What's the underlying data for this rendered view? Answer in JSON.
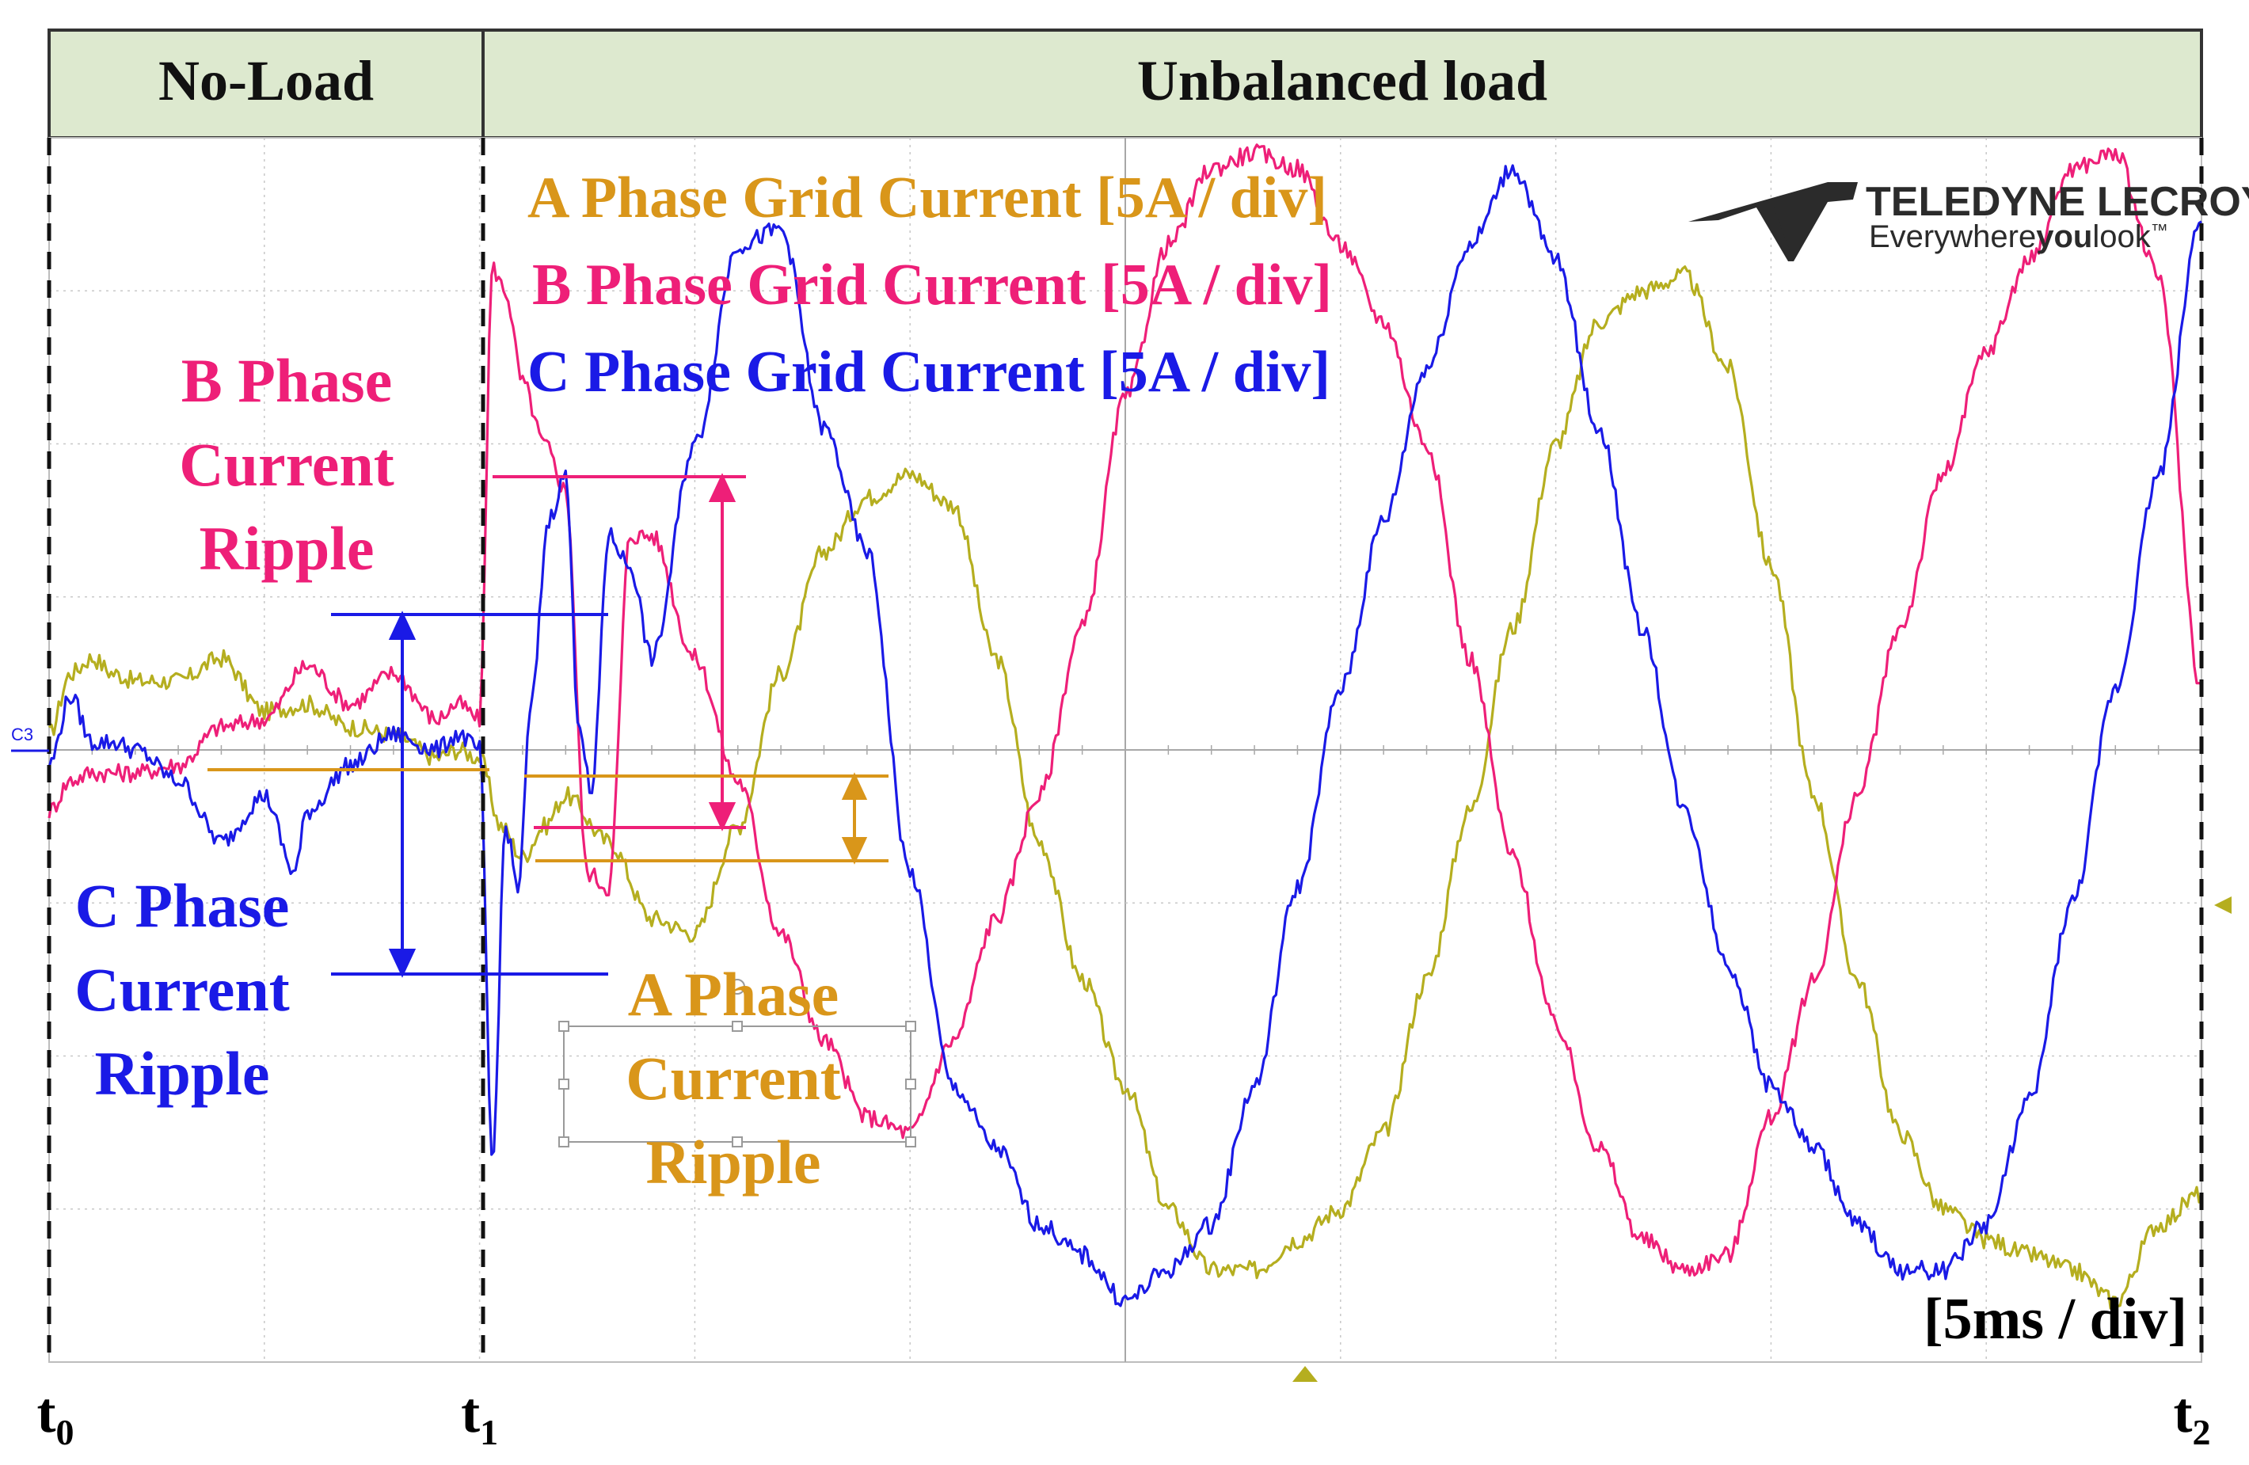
{
  "header": {
    "phase1": "No-Load",
    "phase2": "Unbalanced load",
    "bg_color": "#dde9cf"
  },
  "legend": [
    {
      "text": "A Phase Grid Current [5A / div]",
      "color": "#d9961a"
    },
    {
      "text": "B Phase Grid Current [5A / div]",
      "color": "#ee1f78"
    },
    {
      "text": "C Phase Grid Current [5A / div]",
      "color": "#1a1ae6"
    }
  ],
  "logo": {
    "brand": "TELEDYNE LECROY",
    "tagline_pre": "Everywhere",
    "tagline_bold": "you",
    "tagline_post": "look",
    "trademark": "™"
  },
  "scale": "[5ms / div]",
  "channel_marker": "C3",
  "annotations": {
    "b_ripple": [
      "B Phase",
      "Current",
      "Ripple"
    ],
    "c_ripple": [
      "C Phase",
      "Current",
      "Ripple"
    ],
    "a_ripple": [
      "A Phase",
      "Current",
      "Ripple"
    ]
  },
  "chart_data": {
    "type": "line",
    "title": "",
    "xlabel": "",
    "ylabel": "",
    "x_ticks": [
      {
        "base": "t",
        "sub": "0"
      },
      {
        "base": "t",
        "sub": "1"
      },
      {
        "base": "t",
        "sub": "2"
      }
    ],
    "x_unit": "ms",
    "xlim": [
      0,
      50
    ],
    "ylim": [
      -4,
      4
    ],
    "y_unit": "div (5 A/div)",
    "grid": true,
    "events": [
      {
        "x": 0,
        "label": "t0"
      },
      {
        "x": 10,
        "label": "t1"
      },
      {
        "x": 50,
        "label": "t2"
      }
    ],
    "series": [
      {
        "name": "A Phase Grid Current [5A / div]",
        "color": "#b5ae1f",
        "x": [
          0,
          0.5,
          1,
          1.5,
          2,
          3,
          4,
          5,
          6,
          7,
          8,
          9,
          9.5,
          10,
          10.5,
          11,
          11.5,
          12,
          13,
          14,
          15,
          16,
          17,
          18,
          19,
          20,
          21,
          22,
          23,
          24,
          25,
          26,
          27,
          28,
          29,
          30,
          31,
          32,
          33,
          34,
          35,
          36,
          37,
          38,
          39,
          40,
          41,
          42,
          43,
          44,
          45,
          46,
          47,
          48,
          49,
          50
        ],
        "values": [
          0.1,
          0.5,
          0.6,
          0.5,
          0.45,
          0.45,
          0.6,
          0.25,
          0.3,
          0.15,
          0.1,
          -0.05,
          0.0,
          -0.05,
          -0.5,
          -0.7,
          -0.5,
          -0.3,
          -0.6,
          -1.1,
          -1.2,
          -0.5,
          0.5,
          1.3,
          1.65,
          1.8,
          1.6,
          0.6,
          -0.6,
          -1.5,
          -2.2,
          -3.0,
          -3.4,
          -3.4,
          -3.2,
          -3.0,
          -2.5,
          -1.5,
          -0.4,
          0.8,
          2.0,
          2.8,
          3.0,
          3.1,
          2.5,
          1.2,
          -0.3,
          -1.5,
          -2.5,
          -3.0,
          -3.2,
          -3.3,
          -3.4,
          -3.6,
          -3.1,
          -2.9
        ]
      },
      {
        "name": "B Phase Grid Current [5A / div]",
        "color": "#ee1f78",
        "x": [
          0,
          0.5,
          1,
          2,
          3,
          4,
          5,
          6,
          7,
          8,
          9,
          9.5,
          10,
          10.3,
          10.6,
          11,
          11.5,
          12,
          12.5,
          13,
          13.5,
          14,
          15,
          16,
          17,
          18,
          19,
          20,
          21,
          22,
          23,
          24,
          25,
          26,
          27,
          28,
          29,
          30,
          31,
          32,
          33,
          34,
          35,
          36,
          37,
          38,
          39,
          40,
          41,
          42,
          43,
          44,
          45,
          46,
          47,
          48,
          49,
          50
        ],
        "values": [
          -0.4,
          -0.2,
          -0.15,
          -0.15,
          -0.1,
          0.15,
          0.2,
          0.55,
          0.3,
          0.5,
          0.2,
          0.3,
          0.2,
          3.15,
          3.0,
          2.4,
          2.0,
          1.7,
          -0.8,
          -0.9,
          1.4,
          1.4,
          0.6,
          -0.2,
          -1.2,
          -1.9,
          -2.4,
          -2.5,
          -1.9,
          -1.1,
          -0.3,
          0.8,
          2.3,
          3.3,
          3.8,
          3.9,
          3.8,
          3.3,
          2.8,
          2.0,
          0.6,
          -0.7,
          -1.8,
          -2.6,
          -3.2,
          -3.4,
          -3.3,
          -2.4,
          -1.5,
          -0.3,
          0.8,
          1.8,
          2.6,
          3.2,
          3.8,
          3.9,
          3.1,
          0.4
        ]
      },
      {
        "name": "C Phase Grid Current [5A / div]",
        "color": "#1a1ae6",
        "x": [
          0,
          0.5,
          1,
          1.5,
          2,
          3,
          4,
          5,
          5.7,
          6,
          7,
          8,
          9,
          9.5,
          10,
          10.3,
          10.6,
          10.9,
          11.2,
          11.6,
          12,
          12.3,
          12.6,
          13,
          13.5,
          14,
          15,
          16,
          17,
          18,
          19,
          20,
          21,
          22,
          23,
          24,
          25,
          26,
          27,
          28,
          29,
          30,
          31,
          32,
          33,
          34,
          35,
          36,
          37,
          38,
          39,
          40,
          41,
          42,
          43,
          44,
          45,
          46,
          47,
          48,
          49,
          50
        ],
        "values": [
          -0.1,
          0.35,
          0.05,
          0.05,
          0.0,
          -0.2,
          -0.6,
          -0.3,
          -0.8,
          -0.4,
          -0.1,
          0.1,
          0.0,
          0.1,
          0.0,
          -2.7,
          -0.5,
          -0.9,
          0.3,
          1.5,
          1.8,
          0.2,
          -0.3,
          1.4,
          1.2,
          0.6,
          2.0,
          3.3,
          3.4,
          2.1,
          1.3,
          -0.8,
          -2.2,
          -2.6,
          -3.1,
          -3.3,
          -3.6,
          -3.4,
          -3.1,
          -2.2,
          -0.9,
          0.4,
          1.5,
          2.5,
          3.3,
          3.8,
          3.2,
          2.1,
          0.8,
          -0.4,
          -1.4,
          -2.2,
          -2.6,
          -3.1,
          -3.4,
          -3.4,
          -3.1,
          -2.3,
          -1.0,
          0.4,
          1.8,
          3.5
        ]
      }
    ]
  }
}
